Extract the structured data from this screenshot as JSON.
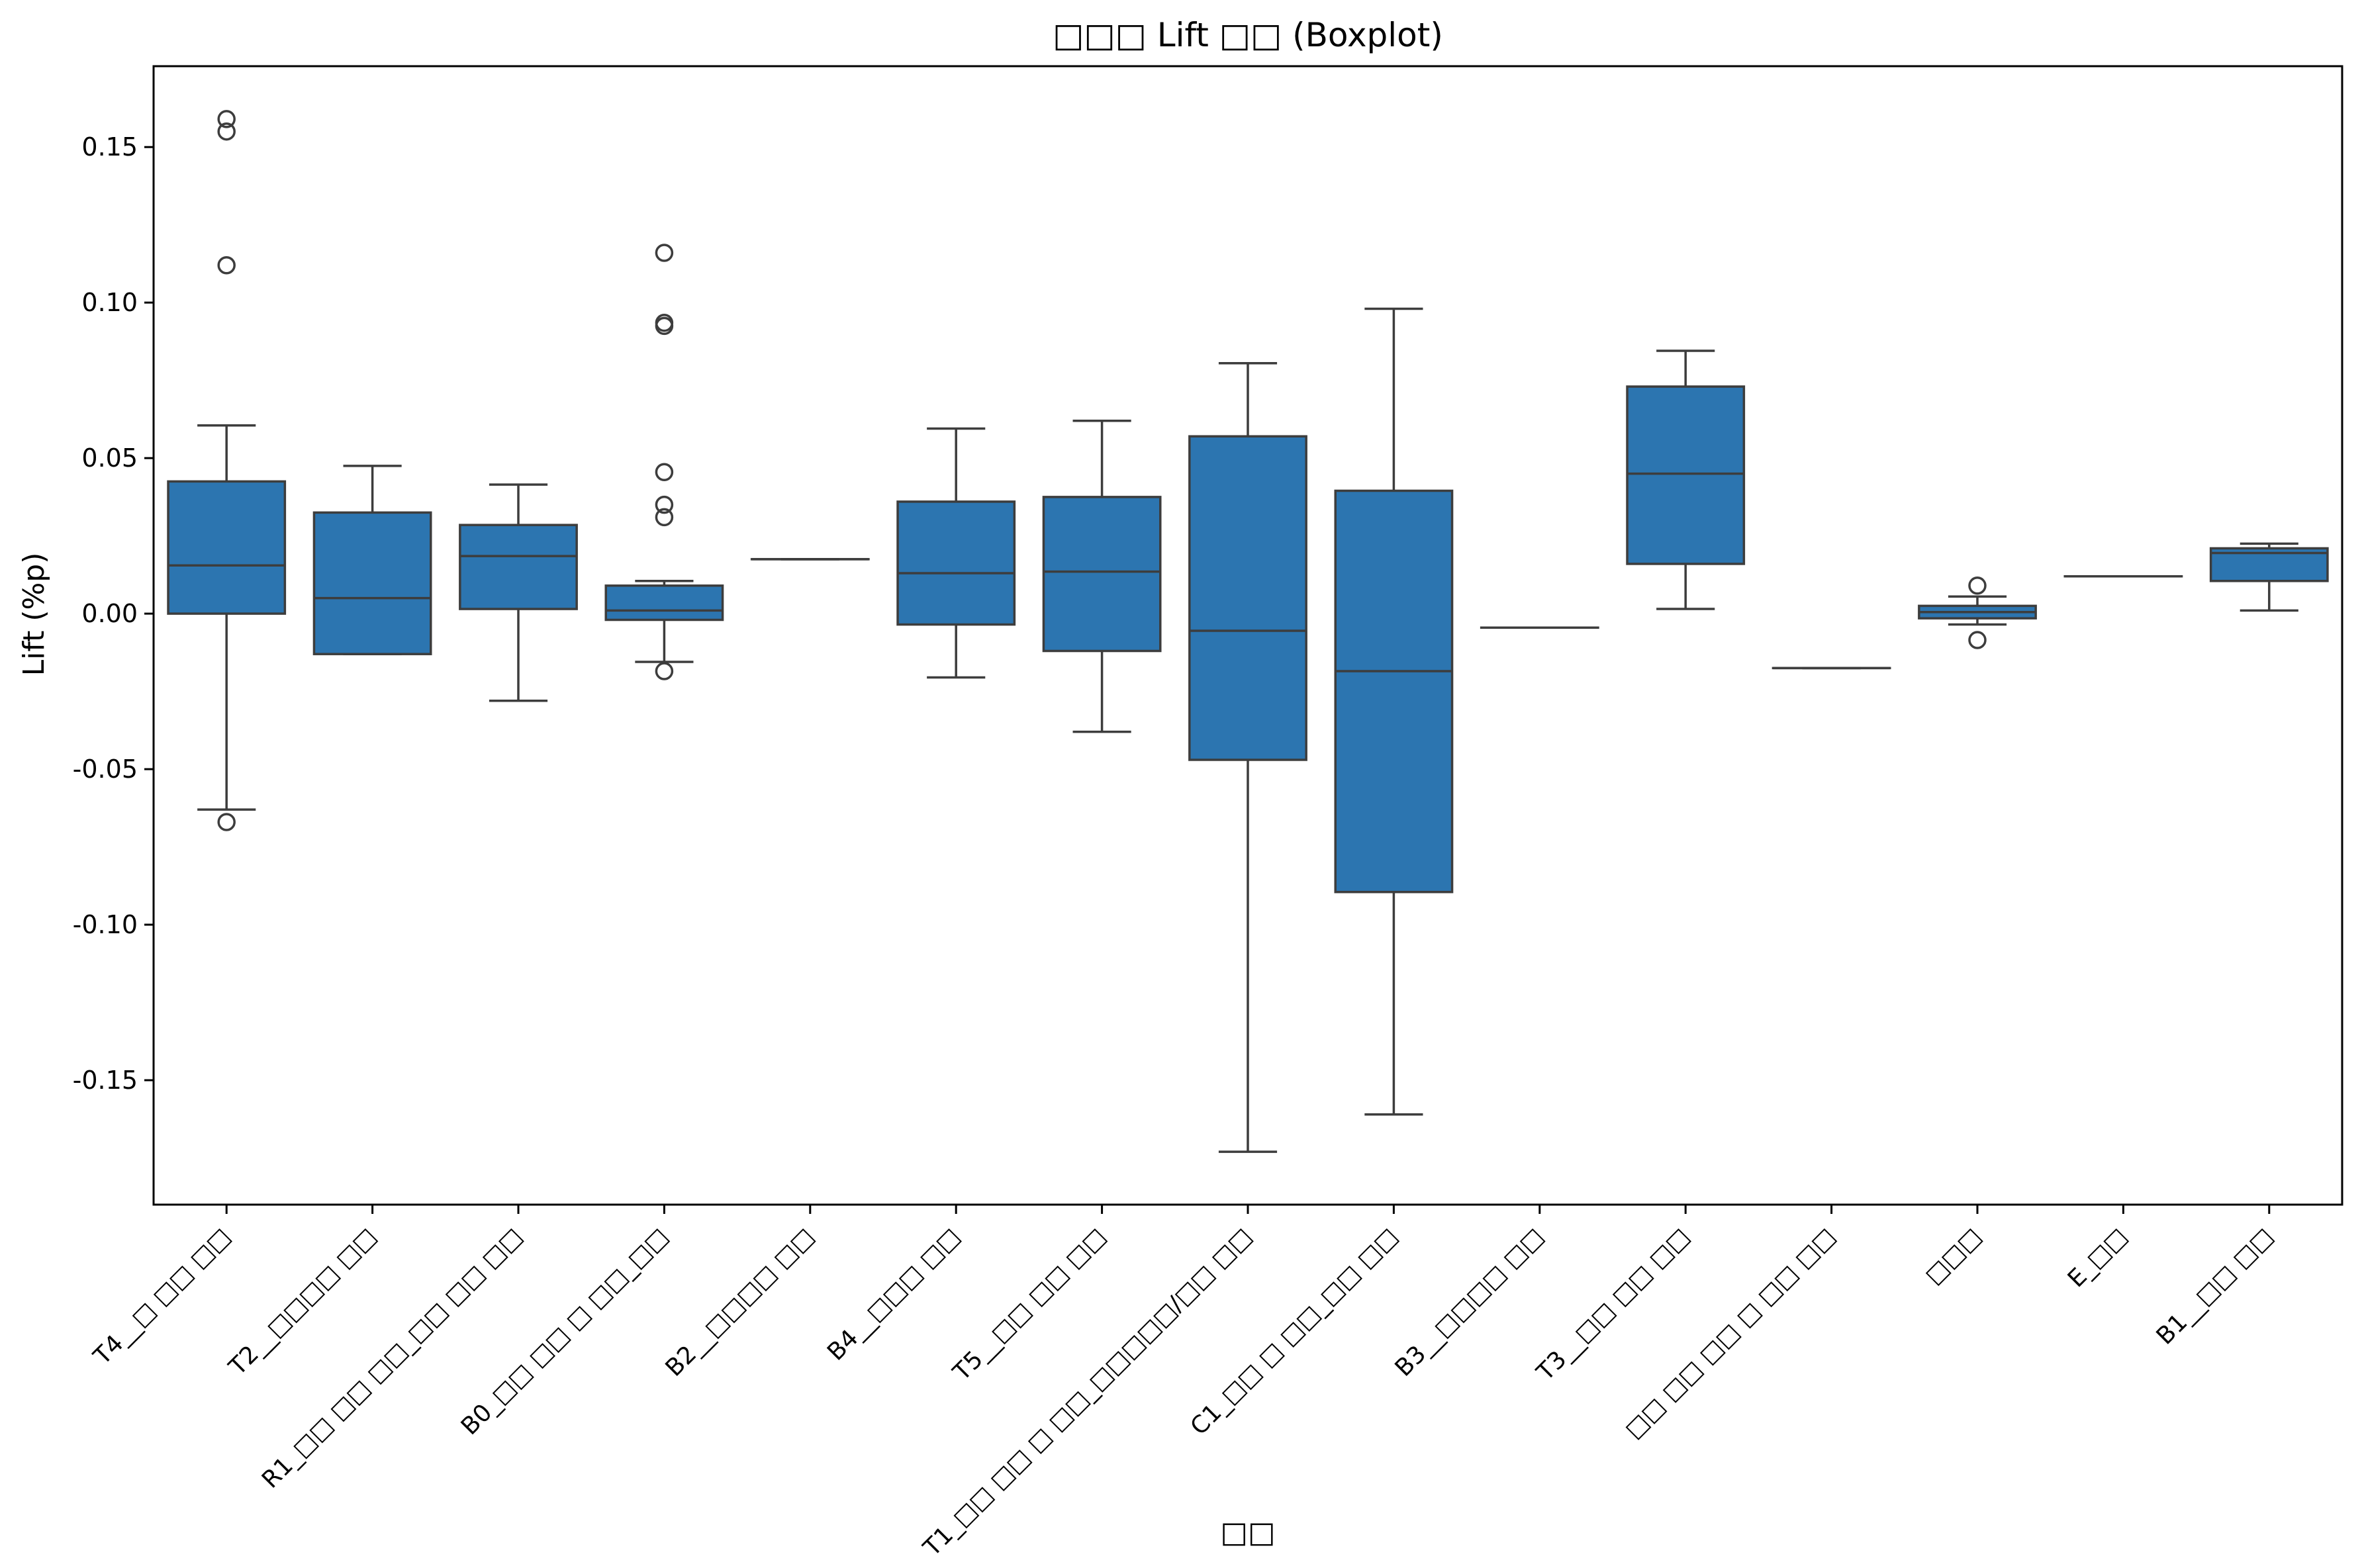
{
  "chart_data": {
    "type": "boxplot",
    "title": "□□□ Lift □□ (Boxplot)",
    "xlabel": "□□",
    "ylabel": "Lift (%p)",
    "ylim": [
      -0.19,
      0.176
    ],
    "yticks": [
      0.15,
      0.1,
      0.05,
      0.0,
      -0.05,
      -0.1,
      -0.15
    ],
    "ytick_labels": [
      "0.15",
      "0.10",
      "0.05",
      "0.00",
      "-0.05",
      "-0.10",
      "-0.15"
    ],
    "grid": false,
    "box_color": "#2c75b0",
    "line_color": "#3d3d3d",
    "categories": [
      "T4__□ □□ □□",
      "T2__□□□□ □□",
      "R1_□□ □□ □□_□□ □□ □□",
      "B0_□□ □□ □ □□_□□",
      "B2__□□□□ □□",
      "B4__□□□ □□",
      "T5__□□ □□ □□",
      "T1_□□ □□ □ □□_□□□□□/□□ □□",
      "C1_□□ □ □□_□□ □□",
      "B3__□□□□ □□",
      "T3__□□ □□ □□",
      "□□ □□ □□ □ □□ □□",
      "□□□",
      "E_□□",
      "B1__□□ □□"
    ],
    "boxes": [
      {
        "whislo": -0.063,
        "q1": 0.0,
        "med": 0.0155,
        "q3": 0.0425,
        "whishi": 0.0605,
        "fliers": [
          0.159,
          0.155,
          0.112,
          -0.067
        ]
      },
      {
        "whislo": -0.013,
        "q1": -0.013,
        "med": 0.005,
        "q3": 0.0325,
        "whishi": 0.0475,
        "fliers": []
      },
      {
        "whislo": -0.028,
        "q1": 0.0015,
        "med": 0.0185,
        "q3": 0.0285,
        "whishi": 0.0415,
        "fliers": []
      },
      {
        "whislo": -0.0155,
        "q1": -0.002,
        "med": 0.001,
        "q3": 0.009,
        "whishi": 0.0105,
        "fliers": [
          0.116,
          0.0935,
          0.0925,
          0.0455,
          0.035,
          0.031,
          -0.0185
        ]
      },
      {
        "whislo": 0.0175,
        "q1": 0.0175,
        "med": 0.0175,
        "q3": 0.0175,
        "whishi": 0.0175,
        "fliers": []
      },
      {
        "whislo": -0.0205,
        "q1": -0.0035,
        "med": 0.013,
        "q3": 0.036,
        "whishi": 0.0595,
        "fliers": []
      },
      {
        "whislo": -0.038,
        "q1": -0.012,
        "med": 0.0135,
        "q3": 0.0375,
        "whishi": 0.062,
        "fliers": []
      },
      {
        "whislo": -0.173,
        "q1": -0.047,
        "med": -0.0055,
        "q3": 0.057,
        "whishi": 0.0805,
        "fliers": []
      },
      {
        "whislo": -0.161,
        "q1": -0.0895,
        "med": -0.0185,
        "q3": 0.0395,
        "whishi": 0.098,
        "fliers": []
      },
      {
        "whislo": -0.0045,
        "q1": -0.0045,
        "med": -0.0045,
        "q3": -0.0045,
        "whishi": -0.0045,
        "fliers": []
      },
      {
        "whislo": 0.0015,
        "q1": 0.016,
        "med": 0.045,
        "q3": 0.073,
        "whishi": 0.0845,
        "fliers": []
      },
      {
        "whislo": -0.0175,
        "q1": -0.0175,
        "med": -0.0175,
        "q3": -0.0175,
        "whishi": -0.0175,
        "fliers": []
      },
      {
        "whislo": -0.0035,
        "q1": -0.0015,
        "med": 0.0005,
        "q3": 0.0025,
        "whishi": 0.0055,
        "fliers": [
          0.009,
          -0.0085
        ]
      },
      {
        "whislo": 0.012,
        "q1": 0.012,
        "med": 0.012,
        "q3": 0.012,
        "whishi": 0.012,
        "fliers": []
      },
      {
        "whislo": 0.001,
        "q1": 0.0105,
        "med": 0.0195,
        "q3": 0.021,
        "whishi": 0.0225,
        "fliers": []
      }
    ]
  }
}
